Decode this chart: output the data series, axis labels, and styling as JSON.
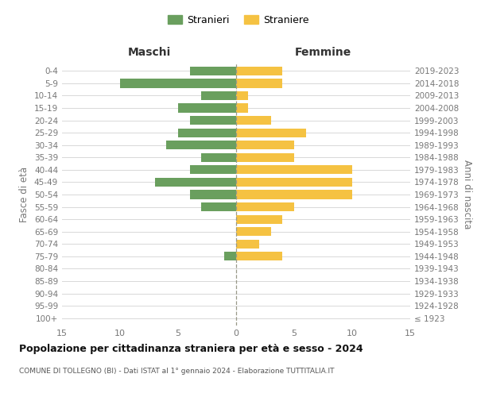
{
  "age_groups": [
    "100+",
    "95-99",
    "90-94",
    "85-89",
    "80-84",
    "75-79",
    "70-74",
    "65-69",
    "60-64",
    "55-59",
    "50-54",
    "45-49",
    "40-44",
    "35-39",
    "30-34",
    "25-29",
    "20-24",
    "15-19",
    "10-14",
    "5-9",
    "0-4"
  ],
  "birth_years": [
    "≤ 1923",
    "1924-1928",
    "1929-1933",
    "1934-1938",
    "1939-1943",
    "1944-1948",
    "1949-1953",
    "1954-1958",
    "1959-1963",
    "1964-1968",
    "1969-1973",
    "1974-1978",
    "1979-1983",
    "1984-1988",
    "1989-1993",
    "1994-1998",
    "1999-2003",
    "2004-2008",
    "2009-2013",
    "2014-2018",
    "2019-2023"
  ],
  "males": [
    0,
    0,
    0,
    0,
    0,
    1,
    0,
    0,
    0,
    3,
    4,
    7,
    4,
    3,
    6,
    5,
    4,
    5,
    3,
    10,
    4
  ],
  "females": [
    0,
    0,
    0,
    0,
    0,
    4,
    2,
    3,
    4,
    5,
    10,
    10,
    10,
    5,
    5,
    6,
    3,
    1,
    1,
    4,
    4
  ],
  "male_color": "#6a9f5e",
  "female_color": "#f5c242",
  "background_color": "#ffffff",
  "grid_color": "#d8d8d8",
  "title": "Popolazione per cittadinanza straniera per età e sesso - 2024",
  "subtitle": "COMUNE DI TOLLEGNO (BI) - Dati ISTAT al 1° gennaio 2024 - Elaborazione TUTTITALIA.IT",
  "xlabel_left": "Maschi",
  "xlabel_right": "Femmine",
  "ylabel_left": "Fasce di età",
  "ylabel_right": "Anni di nascita",
  "legend_male": "Stranieri",
  "legend_female": "Straniere",
  "xlim": 15,
  "label_color": "#777777",
  "header_color": "#333333",
  "title_color": "#111111",
  "subtitle_color": "#555555"
}
